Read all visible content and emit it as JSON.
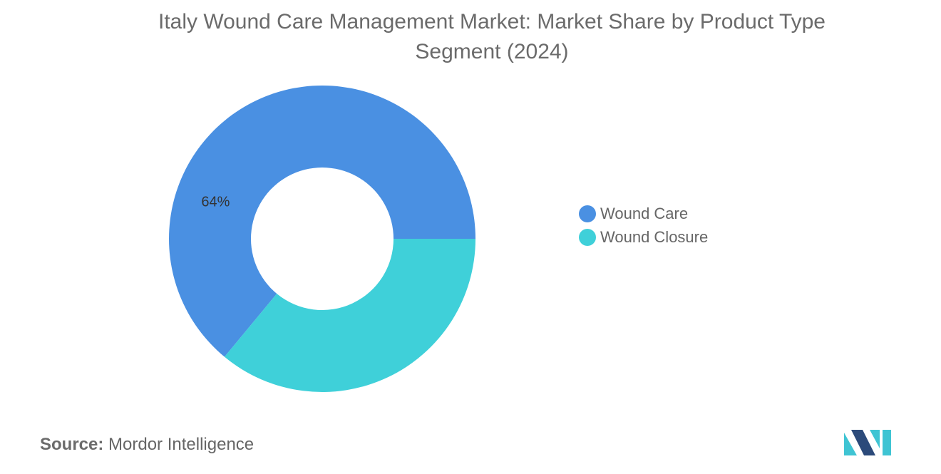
{
  "chart_data": {
    "type": "pie",
    "title": "Italy Wound Care Management Market: Market Share by Product Type Segment (2024)",
    "donut": true,
    "categories": [
      "Wound Care",
      "Wound Closure"
    ],
    "values": [
      64,
      36
    ],
    "data_labels": [
      "64%",
      ""
    ],
    "colors": [
      "#4a90e2",
      "#3fd0d9"
    ],
    "legend_position": "right"
  },
  "source": {
    "prefix": "Source:",
    "text": "Mordor Intelligence"
  },
  "logo": {
    "icon": "mordor-intelligence-logo-icon",
    "colors": [
      "#2c4a7a",
      "#3fc4d3"
    ]
  }
}
